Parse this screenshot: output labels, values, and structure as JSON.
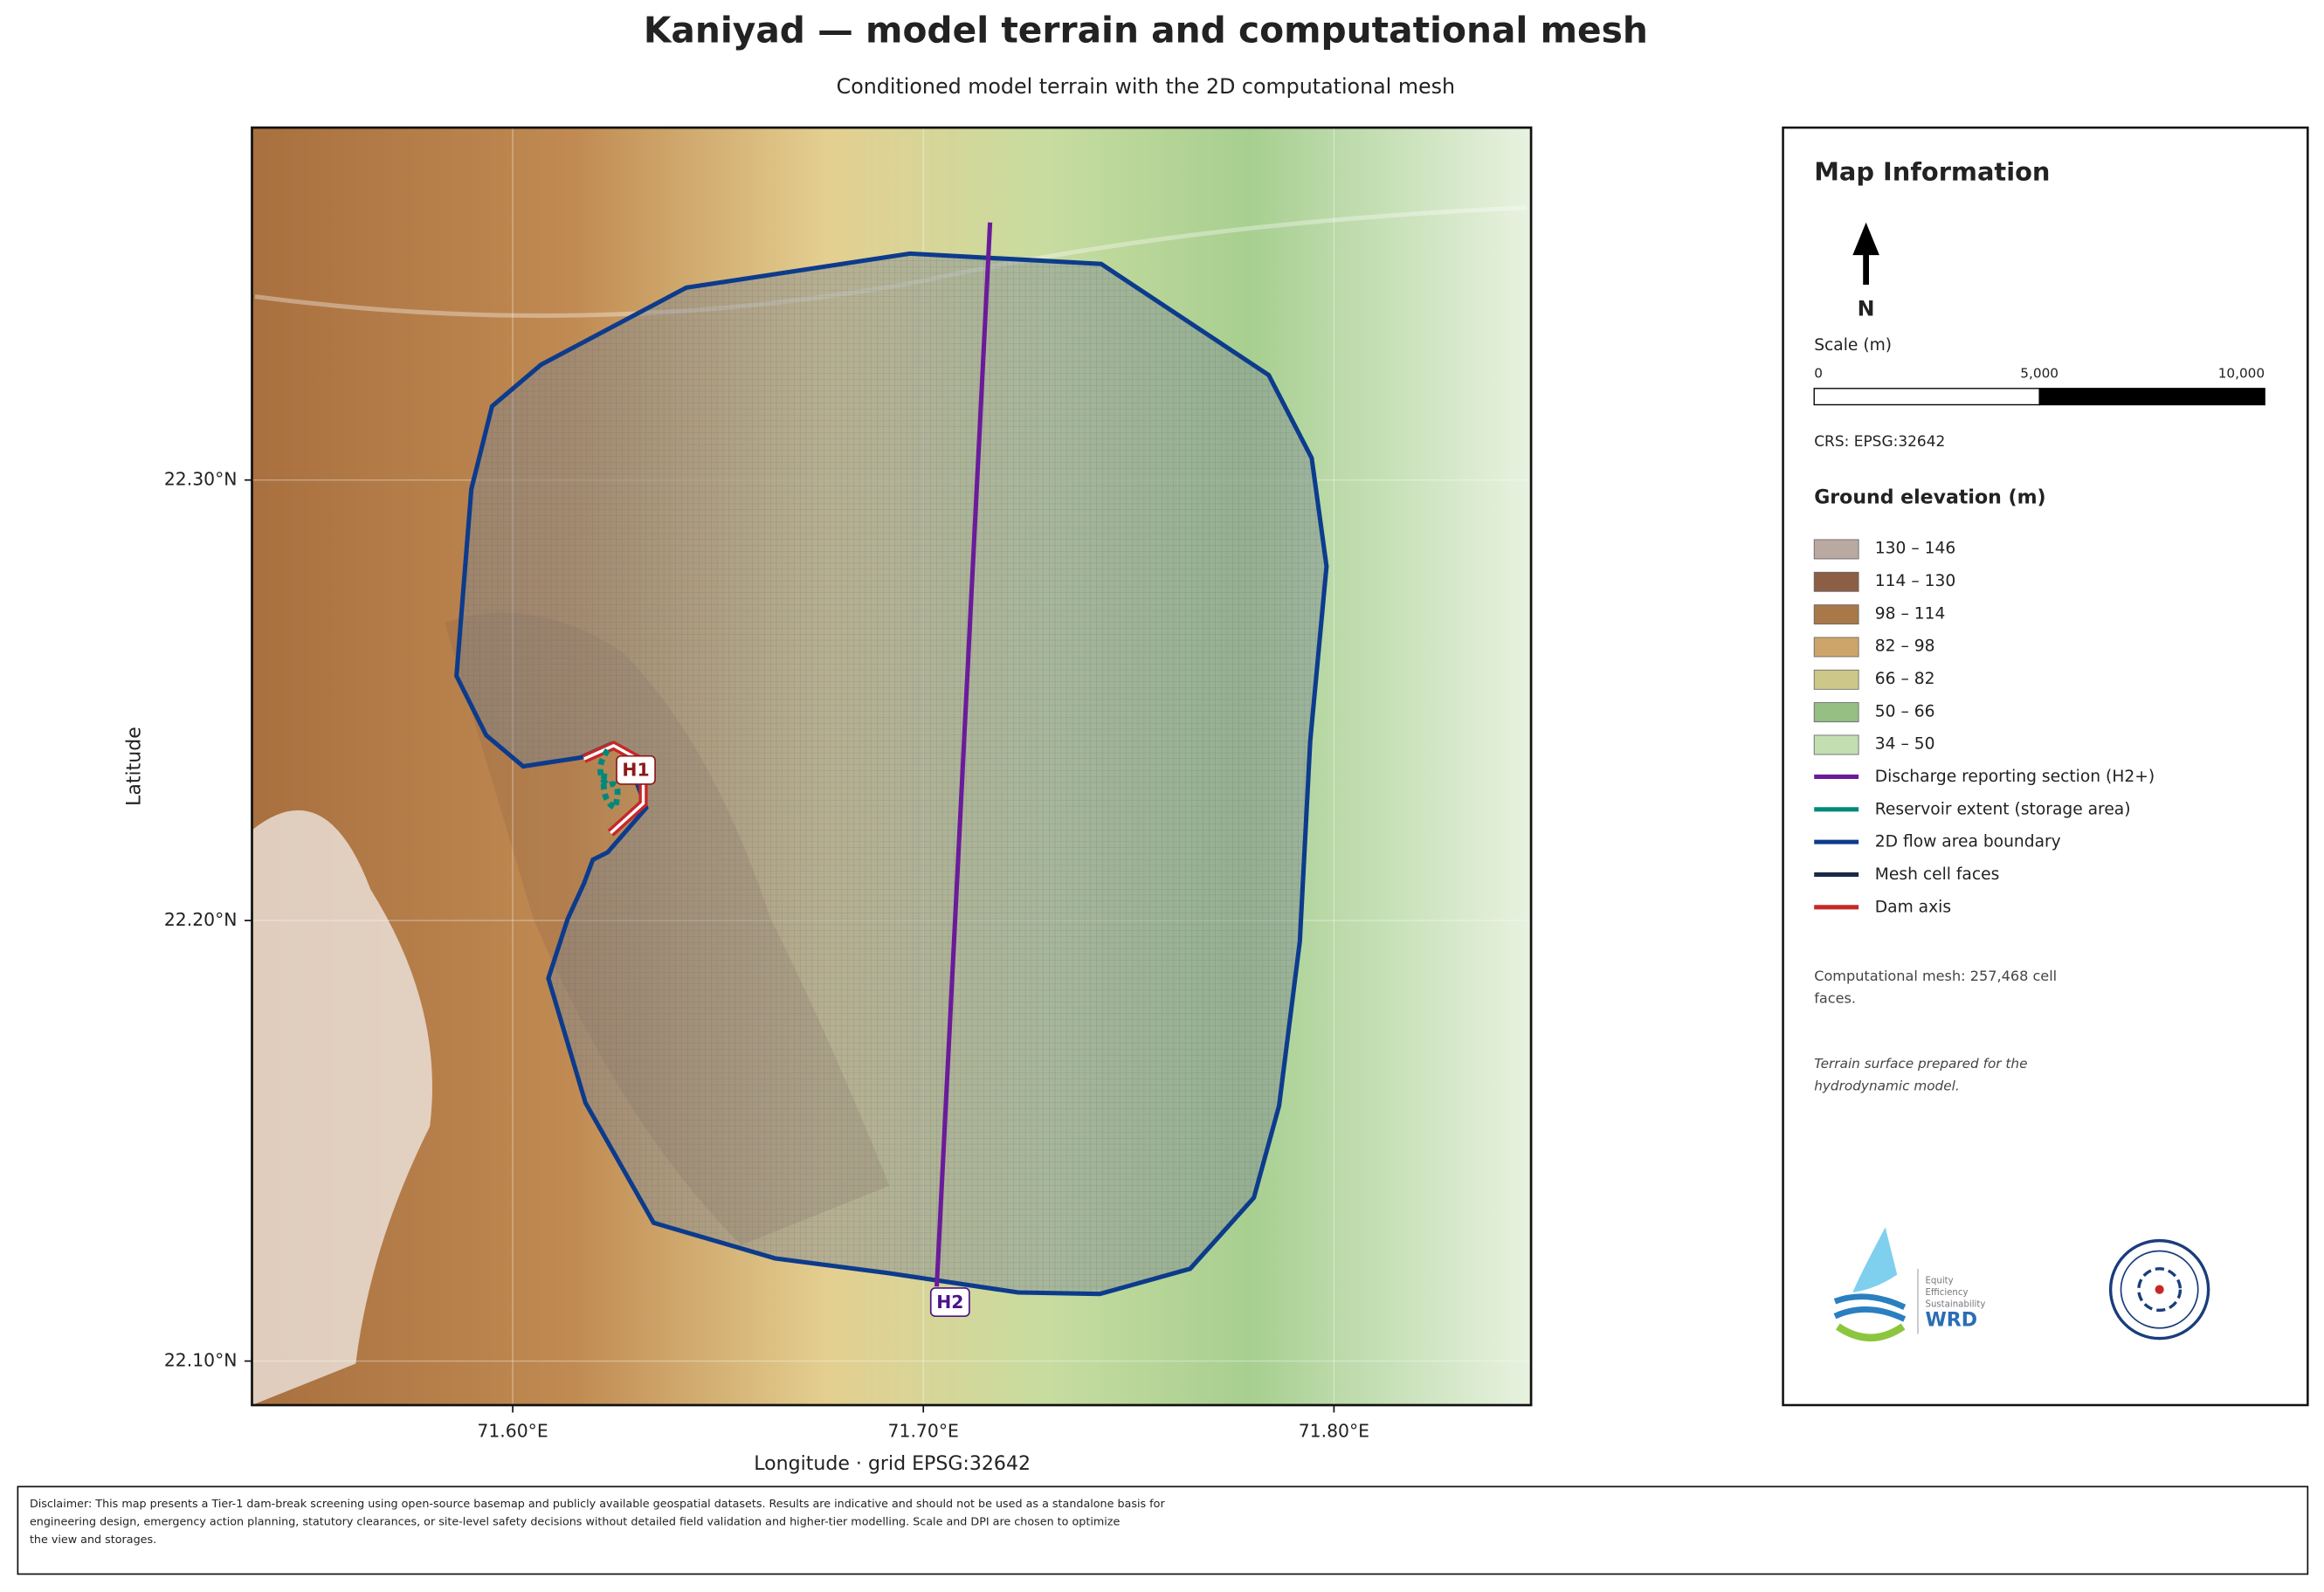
{
  "header": {
    "title": "Kaniyad — model terrain and computational mesh",
    "subtitle": "Conditioned model terrain with the 2D computational mesh"
  },
  "map": {
    "x_label": "Longitude   ·   grid EPSG:32642",
    "y_label": "Latitude",
    "xlim": [
      71.5365,
      71.848
    ],
    "ylim": [
      22.09,
      22.38
    ],
    "xticks": [
      {
        "value": 71.6,
        "label": "71.60°E"
      },
      {
        "value": 71.7,
        "label": "71.70°E"
      },
      {
        "value": 71.8,
        "label": "71.80°E"
      }
    ],
    "yticks": [
      {
        "value": 22.3,
        "label": "22.30°N"
      },
      {
        "value": 22.2,
        "label": "22.20°N"
      },
      {
        "value": 22.1,
        "label": "22.10°N"
      }
    ],
    "labels": {
      "dam": "H1",
      "section": "H2"
    }
  },
  "panel": {
    "title": "Map Information",
    "north": "N",
    "scale_label": "Scale (m)",
    "scale_ticks": [
      0,
      {
        "value": 5000,
        "label": "5,000"
      },
      {
        "value": 10000,
        "label": "10,000"
      }
    ],
    "crs": "CRS: EPSG:32642",
    "legend_title": "Ground elevation (m)",
    "elevation": [
      {
        "label": "130 – 146",
        "color": "#b9a9a0"
      },
      {
        "label": "114 – 130",
        "color": "#8b5e45"
      },
      {
        "label": "98 – 114",
        "color": "#a87849"
      },
      {
        "label": "82 – 98",
        "color": "#cda56a"
      },
      {
        "label": "66 – 82",
        "color": "#cdc78a"
      },
      {
        "label": "50 – 66",
        "color": "#95bf83"
      },
      {
        "label": "34 – 50",
        "color": "#c3deb0"
      }
    ],
    "lines": [
      {
        "label": "Discharge reporting section (H2+)",
        "color": "#6a1b9a"
      },
      {
        "label": "Reservoir extent (storage area)",
        "color": "#00897b"
      },
      {
        "label": "2D flow area boundary",
        "color": "#0d3b8c"
      },
      {
        "label": "Mesh cell faces",
        "color": "#1a2a44"
      },
      {
        "label": "Dam axis",
        "color": "#c62828"
      }
    ],
    "mesh_note_1": "Computational mesh: 257,468 cell",
    "mesh_note_2": "faces.",
    "terrain_note_1": "Terrain surface prepared for the",
    "terrain_note_2": "hydrodynamic model.",
    "logo_text": [
      "Equity",
      "Efficiency",
      "Sustainability",
      "WRD"
    ]
  },
  "footer": {
    "disclaimer": [
      "Disclaimer: This map presents a Tier-1 dam-break screening using open-source basemap and publicly available geospatial datasets. Results are indicative and should not be used as a standalone basis for",
      "engineering design, emergency action planning, statutory clearances, or site-level safety decisions without detailed field validation and higher-tier modelling. Scale and DPI are chosen to optimize",
      "the view and storages."
    ]
  }
}
